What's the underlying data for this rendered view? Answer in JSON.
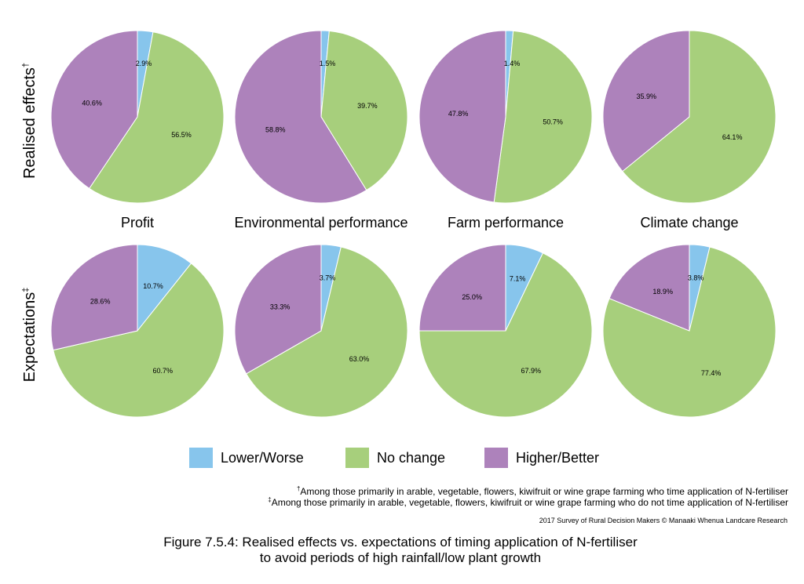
{
  "colors": {
    "Lower/Worse": "#87c5ec",
    "No change": "#a7cf7c",
    "Higher/Better": "#ad82bb",
    "stroke": "#ffffff"
  },
  "chart_data": {
    "type": "pie",
    "row_labels": [
      "Realised effects",
      "Expectations"
    ],
    "row_label_marks": [
      "†",
      "‡"
    ],
    "column_labels": [
      "Profit",
      "Environmental performance",
      "Farm performance",
      "Climate change"
    ],
    "slice_order": [
      "Lower/Worse",
      "No change",
      "Higher/Better"
    ],
    "pies": [
      {
        "row": "Realised effects",
        "column": "Profit",
        "values": [
          2.9,
          56.5,
          40.6
        ],
        "labels": [
          "2.9%",
          "56.5%",
          "40.6%"
        ]
      },
      {
        "row": "Realised effects",
        "column": "Environmental performance",
        "values": [
          1.5,
          39.7,
          58.8
        ],
        "labels": [
          "1.5%",
          "39.7%",
          "58.8%"
        ]
      },
      {
        "row": "Realised effects",
        "column": "Farm performance",
        "values": [
          1.4,
          50.7,
          47.8
        ],
        "labels": [
          "1.4%",
          "50.7%",
          "47.8%"
        ]
      },
      {
        "row": "Realised effects",
        "column": "Climate change",
        "values": [
          0,
          64.1,
          35.9
        ],
        "labels": [
          "",
          "64.1%",
          "35.9%"
        ]
      },
      {
        "row": "Expectations",
        "column": "Profit",
        "values": [
          10.7,
          60.7,
          28.6
        ],
        "labels": [
          "10.7%",
          "60.7%",
          "28.6%"
        ]
      },
      {
        "row": "Expectations",
        "column": "Environmental performance",
        "values": [
          3.7,
          63.0,
          33.3
        ],
        "labels": [
          "3.7%",
          "63.0%",
          "33.3%"
        ]
      },
      {
        "row": "Expectations",
        "column": "Farm performance",
        "values": [
          7.1,
          67.9,
          25.0
        ],
        "labels": [
          "7.1%",
          "67.9%",
          "25.0%"
        ]
      },
      {
        "row": "Expectations",
        "column": "Climate change",
        "values": [
          3.8,
          77.4,
          18.9
        ],
        "labels": [
          "3.8%",
          "77.4%",
          "18.9%"
        ]
      }
    ],
    "legend": [
      "Lower/Worse",
      "No change",
      "Higher/Better"
    ],
    "legend_position": "bottom"
  },
  "footnotes": {
    "dagger_mark": "†",
    "dagger_text": "Among those primarily in arable, vegetable, flowers, kiwifruit or wine grape farming who time application of N-fertiliser",
    "ddagger_mark": "‡",
    "ddagger_text": "Among those primarily in arable, vegetable, flowers, kiwifruit or wine grape farming who do not time application of N-fertiliser"
  },
  "credit": "2017 Survey of Rural Decision Makers © Manaaki Whenua Landcare Research",
  "caption": {
    "line1": "Figure 7.5.4: Realised effects vs. expectations of timing application of N-fertiliser",
    "line2": "to avoid periods of high rainfall/low plant growth"
  }
}
